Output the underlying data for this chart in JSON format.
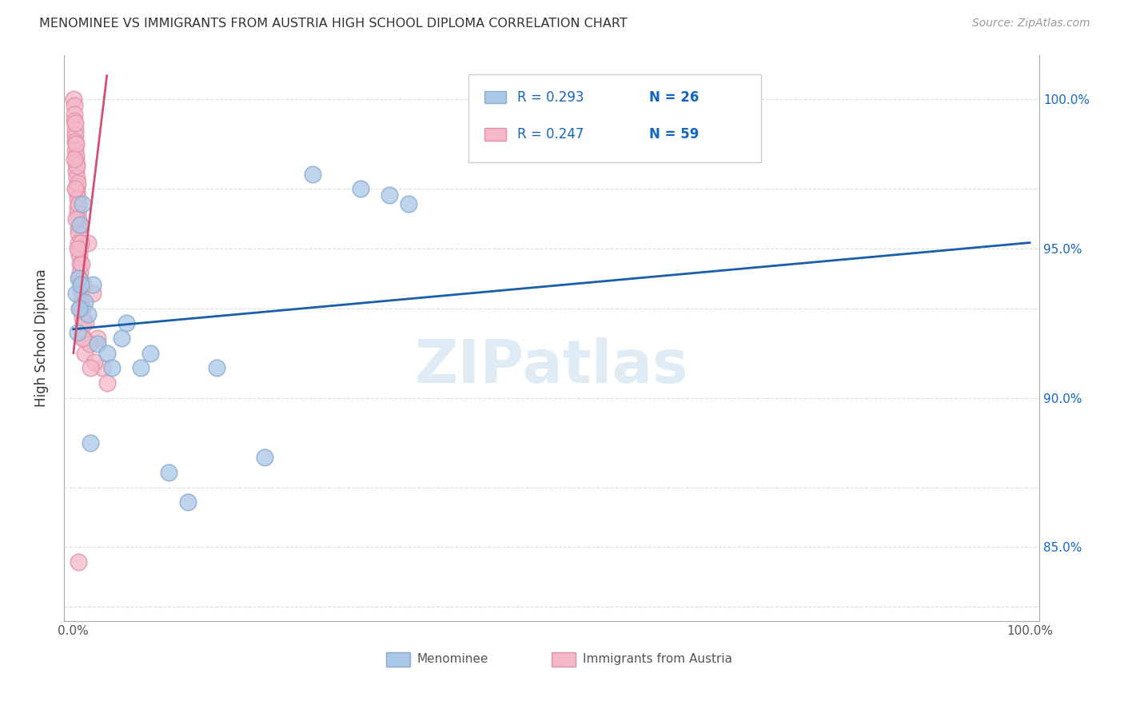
{
  "title": "MENOMINEE VS IMMIGRANTS FROM AUSTRIA HIGH SCHOOL DIPLOMA CORRELATION CHART",
  "source": "Source: ZipAtlas.com",
  "ylabel": "High School Diploma",
  "xlim": [
    -1,
    101
  ],
  "ylim": [
    82.5,
    101.5
  ],
  "watermark": "ZIPatlas",
  "blue_color": "#aac8e8",
  "pink_color": "#f4b8c8",
  "blue_line_color": "#1a5fa8",
  "pink_line_color": "#d45070",
  "blue_marker_edge": "#88aacc",
  "pink_marker_edge": "#e090a8",
  "menominee_x": [
    0.3,
    0.5,
    0.7,
    0.9,
    1.2,
    1.5,
    2.0,
    2.5,
    3.5,
    5.0,
    5.5,
    7.0,
    8.0,
    10.0,
    12.0,
    15.0,
    20.0,
    25.0,
    30.0,
    33.0,
    35.0,
    0.4,
    0.6,
    1.8,
    4.0,
    0.8
  ],
  "menominee_y": [
    93.5,
    94.0,
    95.8,
    96.5,
    93.2,
    92.8,
    93.8,
    91.8,
    91.5,
    92.0,
    92.5,
    91.0,
    91.5,
    87.5,
    86.5,
    91.0,
    88.0,
    97.5,
    97.0,
    96.8,
    96.5,
    92.2,
    93.0,
    88.5,
    91.0,
    93.8
  ],
  "austria_x": [
    0.05,
    0.08,
    0.1,
    0.12,
    0.15,
    0.18,
    0.2,
    0.22,
    0.25,
    0.28,
    0.3,
    0.32,
    0.35,
    0.38,
    0.4,
    0.42,
    0.45,
    0.48,
    0.5,
    0.52,
    0.55,
    0.58,
    0.6,
    0.65,
    0.7,
    0.75,
    0.8,
    0.85,
    0.9,
    0.95,
    1.0,
    1.1,
    1.2,
    1.5,
    2.0,
    2.5,
    3.0,
    3.5,
    0.15,
    0.25,
    0.35,
    0.45,
    0.55,
    0.65,
    0.75,
    0.85,
    1.05,
    1.3,
    1.7,
    2.2,
    0.1,
    0.2,
    0.3,
    0.4,
    0.6,
    0.7,
    0.9,
    1.8,
    0.5
  ],
  "austria_y": [
    100.0,
    99.8,
    99.5,
    99.3,
    99.0,
    98.8,
    98.6,
    98.3,
    98.1,
    97.9,
    97.6,
    97.4,
    97.1,
    96.9,
    96.7,
    96.4,
    96.2,
    96.0,
    95.7,
    95.5,
    95.2,
    95.0,
    94.8,
    94.5,
    94.2,
    93.9,
    93.6,
    93.3,
    93.0,
    92.7,
    92.5,
    92.0,
    91.5,
    95.2,
    93.5,
    92.0,
    91.0,
    90.5,
    99.2,
    98.5,
    97.8,
    97.2,
    96.5,
    95.8,
    95.2,
    94.5,
    93.8,
    92.5,
    91.8,
    91.2,
    98.0,
    97.0,
    96.0,
    95.0,
    94.0,
    93.0,
    92.0,
    91.0,
    84.5
  ],
  "blue_line_x": [
    0,
    100
  ],
  "blue_line_y": [
    92.3,
    95.2
  ],
  "pink_line_x": [
    0.0,
    3.5
  ],
  "pink_line_y": [
    91.5,
    100.8
  ],
  "yticks": [
    85.0,
    90.0,
    95.0,
    100.0
  ],
  "grid_yticks": [
    83.0,
    85.0,
    87.0,
    90.0,
    93.0,
    95.0,
    97.0,
    100.0
  ],
  "xtick_labels": [
    "0.0%",
    "100.0%"
  ],
  "xtick_pos": [
    0,
    100
  ],
  "legend_r1": "R = 0.293",
  "legend_n1": "N = 26",
  "legend_r2": "R = 0.247",
  "legend_n2": "N = 59",
  "legend_text_color": "#1565c0",
  "bottom_label1": "Menominee",
  "bottom_label2": "Immigrants from Austria"
}
